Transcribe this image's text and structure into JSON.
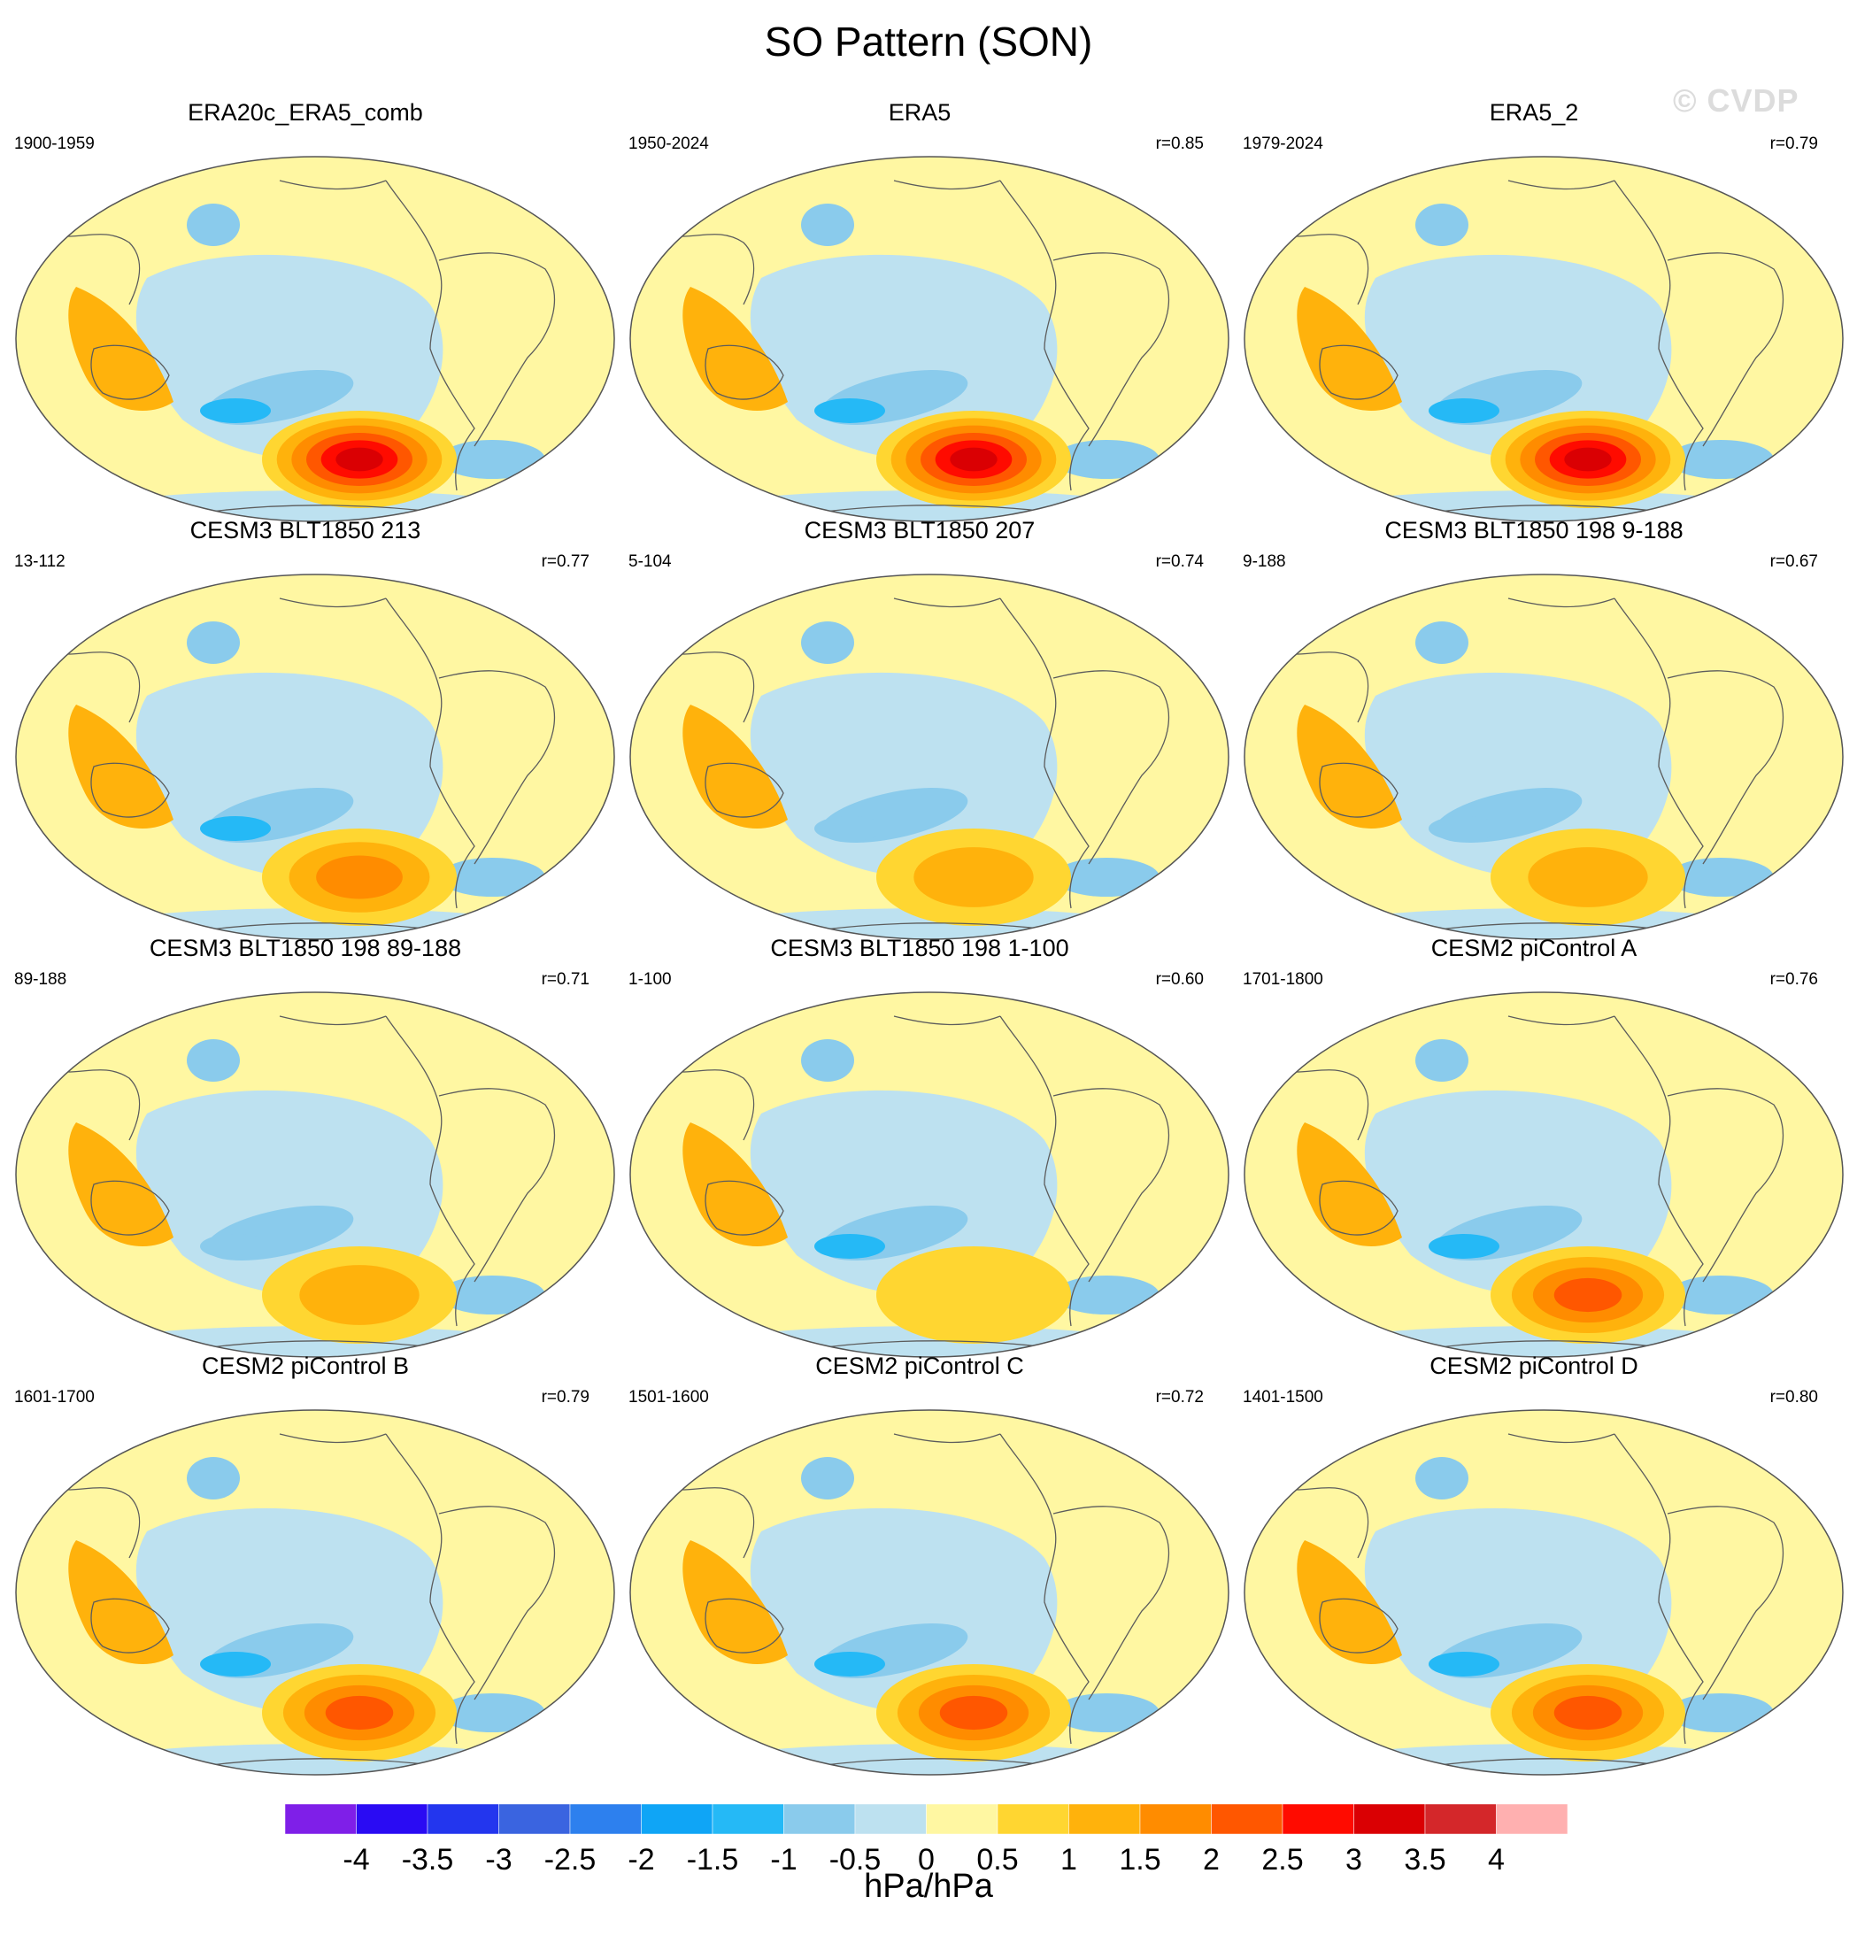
{
  "title": "SO Pattern (SON)",
  "watermark": "© CVDP",
  "colorbar": {
    "levels": [
      "-4",
      "-3.5",
      "-3",
      "-2.5",
      "-2",
      "-1.5",
      "-1",
      "-0.5",
      "0",
      "0.5",
      "1",
      "1.5",
      "2",
      "2.5",
      "3",
      "3.5",
      "4"
    ],
    "colors": [
      "#7f1fe8",
      "#2a0bf3",
      "#2336ee",
      "#3a64e0",
      "#2d80ee",
      "#0fa5f6",
      "#25b9f6",
      "#8acbec",
      "#bde1f0",
      "#fff7a2",
      "#ffd631",
      "#ffb20c",
      "#ff8c00",
      "#ff5700",
      "#ff0b00",
      "#da0003",
      "#d4272a",
      "#ffb0b0"
    ],
    "units": "hPa/hPa"
  },
  "chart_data": [
    {
      "type": "heatmap",
      "title": "ERA20c_ERA5_comb",
      "years": "1900-1959",
      "r": "",
      "pattern": {
        "high": 3.5,
        "low": -1.5,
        "aus": 1.0
      }
    },
    {
      "type": "heatmap",
      "title": "ERA5",
      "years": "1950-2024",
      "r": "r=0.85",
      "pattern": {
        "high": 3.5,
        "low": -1.5,
        "aus": 1.0
      }
    },
    {
      "type": "heatmap",
      "title": "ERA5_2",
      "years": "1979-2024",
      "r": "r=0.79",
      "pattern": {
        "high": 3.5,
        "low": -1.5,
        "aus": 1.0
      }
    },
    {
      "type": "heatmap",
      "title": "CESM3 BLT1850 213",
      "years": "13-112",
      "r": "r=0.77",
      "pattern": {
        "high": 2.0,
        "low": -1.5,
        "aus": 1.0
      }
    },
    {
      "type": "heatmap",
      "title": "CESM3 BLT1850 207",
      "years": "5-104",
      "r": "r=0.74",
      "pattern": {
        "high": 1.5,
        "low": -1.0,
        "aus": 1.0
      }
    },
    {
      "type": "heatmap",
      "title": "CESM3 BLT1850 198 9-188",
      "years": "9-188",
      "r": "r=0.67",
      "pattern": {
        "high": 1.5,
        "low": -1.0,
        "aus": 1.0
      }
    },
    {
      "type": "heatmap",
      "title": "CESM3 BLT1850 198 89-188",
      "years": "89-188",
      "r": "r=0.71",
      "pattern": {
        "high": 1.5,
        "low": -1.0,
        "aus": 1.0
      }
    },
    {
      "type": "heatmap",
      "title": "CESM3 BLT1850 198 1-100",
      "years": "1-100",
      "r": "r=0.60",
      "pattern": {
        "high": 1.0,
        "low": -1.5,
        "aus": 1.0
      }
    },
    {
      "type": "heatmap",
      "title": "CESM2 piControl A",
      "years": "1701-1800",
      "r": "r=0.76",
      "pattern": {
        "high": 2.5,
        "low": -1.5,
        "aus": 1.0
      }
    },
    {
      "type": "heatmap",
      "title": "CESM2 piControl B",
      "years": "1601-1700",
      "r": "r=0.79",
      "pattern": {
        "high": 2.5,
        "low": -1.5,
        "aus": 1.0
      }
    },
    {
      "type": "heatmap",
      "title": "CESM2 piControl C",
      "years": "1501-1600",
      "r": "r=0.72",
      "pattern": {
        "high": 2.5,
        "low": -1.5,
        "aus": 1.0
      }
    },
    {
      "type": "heatmap",
      "title": "CESM2 piControl D",
      "years": "1401-1500",
      "r": "r=0.80",
      "pattern": {
        "high": 2.5,
        "low": -1.5,
        "aus": 1.0
      }
    }
  ]
}
